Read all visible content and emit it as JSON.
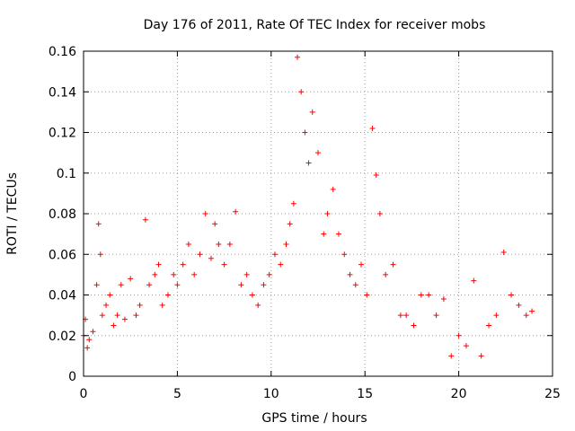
{
  "chart_data": {
    "type": "scatter",
    "title": "Day 176 of 2011, Rate Of TEC Index for receiver mobs",
    "xlabel": "GPS time / hours",
    "ylabel": "ROTI / TECUs",
    "xlim": [
      0,
      25
    ],
    "ylim": [
      0,
      0.16
    ],
    "x_ticks": [
      "0",
      "5",
      "10",
      "15",
      "20",
      "25"
    ],
    "y_ticks": [
      "0",
      "0.02",
      "0.04",
      "0.06",
      "0.08",
      "0.1",
      "0.12",
      "0.14",
      "0.16"
    ],
    "grid": true,
    "marker": "plus",
    "marker_color": "#ff0000",
    "series": [
      {
        "x": [
          0.0,
          0.1,
          0.2,
          0.3,
          0.5,
          0.7,
          0.8,
          0.9,
          1.0,
          1.2,
          1.4,
          1.6,
          1.8,
          2.0,
          2.2,
          2.5,
          2.8,
          3.0,
          3.3,
          3.5,
          3.8,
          4.0,
          4.2,
          4.5,
          4.8,
          5.0,
          5.3,
          5.6,
          5.9,
          6.2,
          6.5,
          6.8,
          7.0,
          7.2,
          7.5,
          7.8,
          8.1,
          8.4,
          8.7,
          9.0,
          9.3,
          9.6,
          9.9,
          10.2,
          10.5,
          10.8,
          11.0,
          11.2,
          11.4,
          11.6,
          11.8,
          12.0,
          12.2,
          12.5,
          12.8,
          13.0,
          13.3,
          13.6,
          13.9,
          14.2,
          14.5,
          14.8,
          15.1,
          15.4,
          15.6,
          15.8,
          16.1,
          16.5,
          16.9,
          17.2,
          17.6,
          18.0,
          18.4,
          18.8,
          19.2,
          19.6,
          20.0,
          20.4,
          20.8,
          21.2,
          21.6,
          22.0,
          22.4,
          22.8,
          23.2,
          23.6,
          23.9
        ],
        "y": [
          0.02,
          0.028,
          0.014,
          0.018,
          0.022,
          0.045,
          0.075,
          0.06,
          0.03,
          0.035,
          0.04,
          0.025,
          0.03,
          0.045,
          0.028,
          0.048,
          0.03,
          0.035,
          0.077,
          0.045,
          0.05,
          0.055,
          0.035,
          0.04,
          0.05,
          0.045,
          0.055,
          0.065,
          0.05,
          0.06,
          0.08,
          0.058,
          0.075,
          0.065,
          0.055,
          0.065,
          0.081,
          0.045,
          0.05,
          0.04,
          0.035,
          0.045,
          0.05,
          0.06,
          0.055,
          0.065,
          0.075,
          0.085,
          0.157,
          0.14,
          0.12,
          0.105,
          0.13,
          0.11,
          0.07,
          0.08,
          0.092,
          0.07,
          0.06,
          0.05,
          0.045,
          0.055,
          0.04,
          0.122,
          0.099,
          0.08,
          0.05,
          0.055,
          0.03,
          0.03,
          0.025,
          0.04,
          0.04,
          0.03,
          0.038,
          0.01,
          0.02,
          0.015,
          0.047,
          0.01,
          0.025,
          0.03,
          0.061,
          0.04,
          0.035,
          0.03,
          0.032
        ]
      }
    ]
  }
}
